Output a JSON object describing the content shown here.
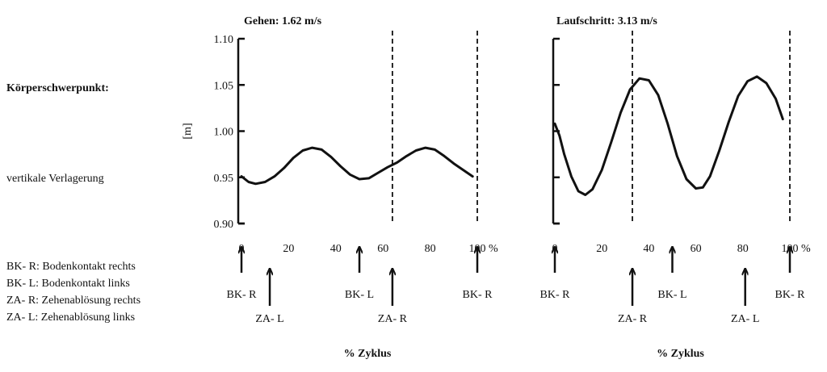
{
  "left_panel": {
    "heading": "Körperschwerpunkt:",
    "subheading": "vertikale Verlagerung",
    "legend": [
      "BK- R: Bodenkontakt rechts",
      "BK- L: Bodenkontakt links",
      "ZA- R: Zehenablösung rechts",
      "ZA- L: Zehenablösung links"
    ]
  },
  "chart_data": [
    {
      "type": "line",
      "title": "Gehen: 1.62 m/s",
      "xlabel": "% Zyklus",
      "ylabel": "[m]",
      "xlim": [
        0,
        100
      ],
      "ylim": [
        0.9,
        1.1
      ],
      "x_ticks": [
        "0",
        "20",
        "40",
        "60",
        "80",
        "100"
      ],
      "x_unit": "%",
      "y_ticks": [
        "0.90",
        "0.95",
        "1.00",
        "1.05",
        "1.10"
      ],
      "x": [
        0,
        3,
        6,
        10,
        14,
        18,
        22,
        26,
        30,
        34,
        38,
        42,
        46,
        50,
        54,
        58,
        62,
        66,
        70,
        74,
        78,
        82,
        86,
        90,
        94,
        98
      ],
      "y": [
        0.951,
        0.945,
        0.943,
        0.945,
        0.951,
        0.96,
        0.971,
        0.979,
        0.982,
        0.98,
        0.972,
        0.962,
        0.953,
        0.948,
        0.949,
        0.955,
        0.961,
        0.966,
        0.973,
        0.979,
        0.982,
        0.98,
        0.973,
        0.965,
        0.958,
        0.951
      ],
      "vlines": [
        64,
        100
      ],
      "events": [
        {
          "label": "BK- R",
          "x": 0,
          "arrow": "short",
          "label_pos": "below-arrow"
        },
        {
          "label": "ZA- L",
          "x": 12,
          "arrow": "long",
          "label_pos": "bottom"
        },
        {
          "label": "BK- L",
          "x": 50,
          "arrow": "short",
          "label_pos": "below-arrow"
        },
        {
          "label": "ZA- R",
          "x": 64,
          "arrow": "long",
          "label_pos": "bottom"
        },
        {
          "label": "BK- R",
          "x": 100,
          "arrow": "short",
          "label_pos": "below-arrow"
        }
      ]
    },
    {
      "type": "line",
      "title": "Laufschritt: 3.13 m/s",
      "xlabel": "% Zyklus",
      "ylabel": "",
      "xlim": [
        0,
        100
      ],
      "ylim": [
        0.9,
        1.1
      ],
      "x_ticks": [
        "0",
        "20",
        "40",
        "60",
        "80",
        "100"
      ],
      "x_unit": "%",
      "y_ticks": [],
      "x": [
        0,
        2,
        4,
        7,
        10,
        13,
        16,
        20,
        24,
        28,
        32,
        36,
        40,
        44,
        48,
        52,
        56,
        60,
        63,
        66,
        70,
        74,
        78,
        82,
        86,
        90,
        94,
        97
      ],
      "y": [
        1.008,
        0.995,
        0.975,
        0.951,
        0.935,
        0.931,
        0.937,
        0.958,
        0.988,
        1.02,
        1.045,
        1.057,
        1.055,
        1.039,
        1.008,
        0.973,
        0.948,
        0.938,
        0.939,
        0.951,
        0.979,
        1.01,
        1.038,
        1.054,
        1.059,
        1.052,
        1.035,
        1.013
      ],
      "vlines": [
        33,
        100
      ],
      "events": [
        {
          "label": "BK- R",
          "x": 0,
          "arrow": "short",
          "label_pos": "below-arrow"
        },
        {
          "label": "ZA- R",
          "x": 33,
          "arrow": "long",
          "label_pos": "bottom"
        },
        {
          "label": "BK- L",
          "x": 50,
          "arrow": "short",
          "label_pos": "below-arrow"
        },
        {
          "label": "ZA- L",
          "x": 81,
          "arrow": "long",
          "label_pos": "bottom"
        },
        {
          "label": "BK- R",
          "x": 100,
          "arrow": "short",
          "label_pos": "below-arrow"
        }
      ]
    }
  ]
}
